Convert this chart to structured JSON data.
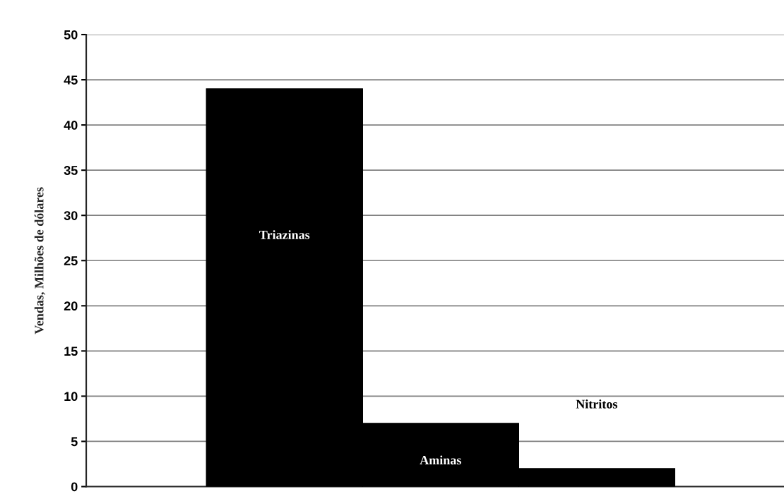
{
  "chart_data": {
    "type": "bar",
    "ylabel": "Vendas, Milhões de dólares",
    "categories": [
      "Triazinas",
      "Aminas",
      "Nitritos"
    ],
    "values": [
      44,
      7,
      2
    ],
    "color": "#000000",
    "ylim": [
      0,
      50
    ],
    "yticks": [
      0,
      5,
      10,
      15,
      20,
      25,
      30,
      35,
      40,
      45,
      50
    ],
    "grid": "y"
  }
}
